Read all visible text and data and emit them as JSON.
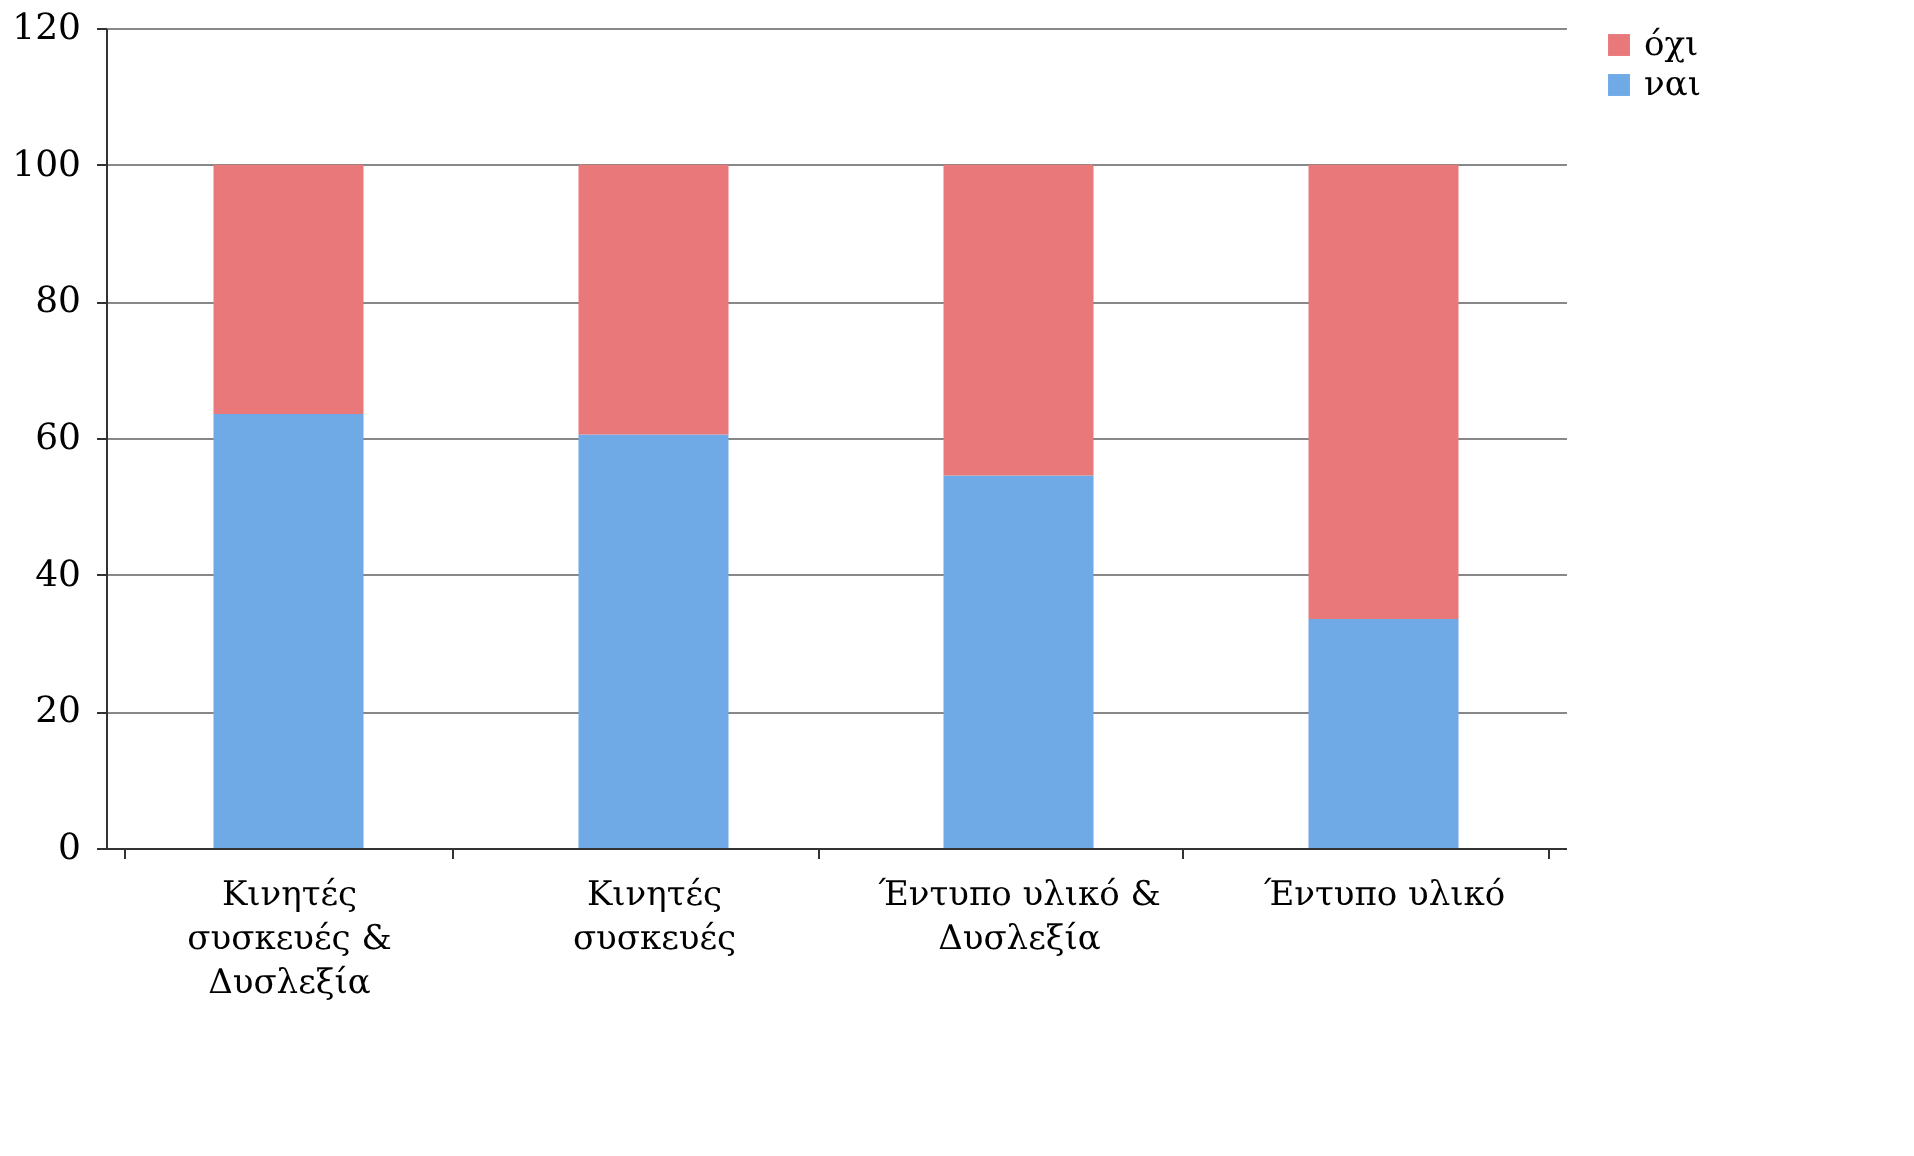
{
  "chart_data": {
    "type": "bar",
    "stacked": true,
    "categories": [
      "Κινητές συσκευές & Δυσλεξία",
      "Κινητές συσκευές",
      "Έντυπο υλικό & Δυσλεξία",
      "Έντυπο υλικό"
    ],
    "series": [
      {
        "name": "ναι",
        "color": "#6fa9e6",
        "values": [
          63.5,
          60.5,
          54.5,
          33.5
        ]
      },
      {
        "name": "όχι",
        "color": "#e8787a",
        "values": [
          36.5,
          39.5,
          45.5,
          66.5
        ]
      }
    ],
    "ylim": [
      0,
      120
    ],
    "yticks": [
      0,
      20,
      40,
      60,
      80,
      100,
      120
    ],
    "grid": "y",
    "legend": "right"
  }
}
